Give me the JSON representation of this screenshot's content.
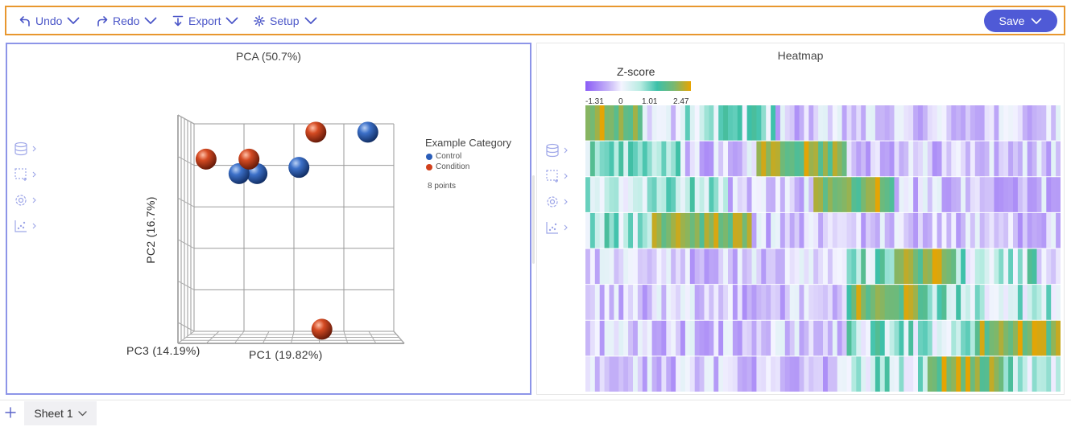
{
  "toolbar": {
    "undo_label": "Undo",
    "redo_label": "Redo",
    "export_label": "Export",
    "setup_label": "Setup",
    "save_label": "Save"
  },
  "colors": {
    "accent": "#4f5ad6",
    "toolbar_border": "#e8972e",
    "active_panel_border": "#8d95e8",
    "control": "#2a5db8",
    "condition": "#d1401c"
  },
  "pca_panel": {
    "title": "PCA (50.7%)",
    "side_tools": [
      "database-icon",
      "selection-icon",
      "gear-icon",
      "scatter-plot-icon"
    ],
    "legend": {
      "title": "Example Category",
      "items": [
        {
          "label": "Control",
          "color": "#2a5db8"
        },
        {
          "label": "Condition",
          "color": "#d1401c"
        }
      ],
      "count_text": "8 points"
    },
    "axes": {
      "y_label": "PC2 (16.7%)",
      "z_label": "PC3 (14.19%)",
      "x_label": "PC1 (19.82%)"
    }
  },
  "chart_data": {
    "type": "scatter",
    "title": "PCA (50.7%)",
    "xlabel": "PC1 (19.82%)",
    "ylabel": "PC2 (16.7%)",
    "zlabel": "PC3 (14.19%)",
    "grid": true,
    "legend_position": "right",
    "series": [
      {
        "name": "Control",
        "color": "#2a5db8",
        "points": [
          [
            0.74,
            0.92
          ],
          [
            0.05,
            0.58
          ],
          [
            -0.37,
            0.52
          ],
          [
            -0.55,
            0.52
          ]
        ]
      },
      {
        "name": "Condition",
        "color": "#d1401c",
        "points": [
          [
            0.22,
            0.92
          ],
          [
            -0.45,
            0.66
          ],
          [
            -0.88,
            0.66
          ],
          [
            0.28,
            -0.98
          ]
        ]
      }
    ]
  },
  "heatmap_panel": {
    "title": "Heatmap",
    "side_tools": [
      "database-icon",
      "selection-icon",
      "gear-icon",
      "scatter-plot-icon"
    ],
    "colorbar": {
      "title": "Z-score",
      "ticks": [
        "-1.31",
        "0",
        "1.01",
        "2.47"
      ]
    },
    "rows": 8,
    "columns": 100
  },
  "sheets": {
    "tabs": [
      {
        "label": "Sheet 1"
      }
    ],
    "add_icon": "plus-icon"
  }
}
